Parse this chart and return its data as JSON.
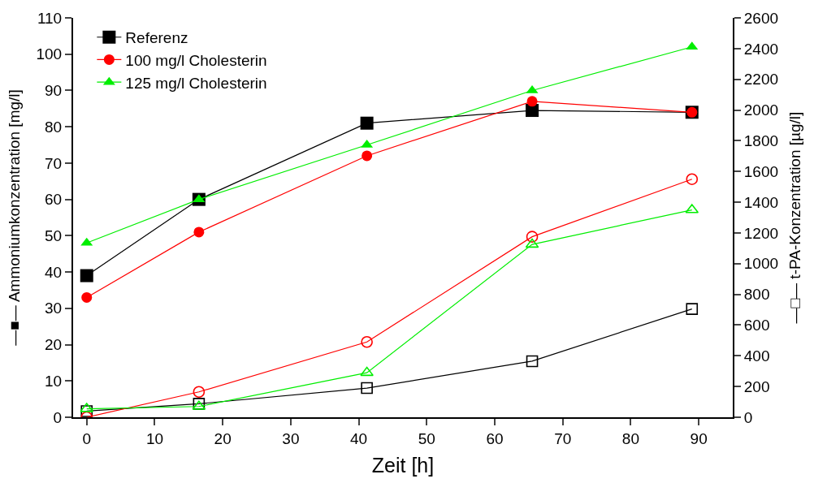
{
  "chart_data": {
    "type": "line",
    "xlabel": "Zeit [h]",
    "ylabel": "—■— Ammoniumkonzentration [mg/l]",
    "y2label": "—□— t-PA-Konzentration [µg/l]",
    "x": [
      0,
      16.5,
      41.2,
      65.5,
      89
    ],
    "xlim": [
      -2,
      95
    ],
    "xticks": [
      0,
      10,
      20,
      30,
      40,
      50,
      60,
      70,
      80,
      90
    ],
    "ylim": [
      0,
      110
    ],
    "yticks": [
      0,
      10,
      20,
      30,
      40,
      50,
      60,
      70,
      80,
      90,
      100,
      110
    ],
    "y2lim": [
      0,
      2600
    ],
    "y2ticks": [
      0,
      200,
      400,
      600,
      800,
      1000,
      1200,
      1400,
      1600,
      1800,
      2000,
      2200,
      2400,
      2600
    ],
    "legend": "top left",
    "line_style": "solid",
    "series": [
      {
        "name": "Referenz",
        "color": "#000000",
        "marker": "square",
        "values": [
          39,
          60,
          81,
          84.5,
          84
        ]
      },
      {
        "name": "100 mg/l Cholesterin",
        "color": "#ff0000",
        "marker": "circle",
        "values": [
          33,
          51,
          72,
          87,
          84
        ]
      },
      {
        "name": "125 mg/l Cholesterin",
        "color": "#00ee00",
        "marker": "triangle",
        "values": [
          48,
          60,
          75,
          90,
          102
        ]
      },
      {
        "color": "#000000",
        "marker": "square-open",
        "axis": "y2",
        "values": [
          40,
          88,
          190,
          365,
          705
        ]
      },
      {
        "color": "#ff0000",
        "marker": "circle-open",
        "axis": "y2",
        "values": [
          0,
          165,
          490,
          1175,
          1550
        ]
      },
      {
        "color": "#00ee00",
        "marker": "triangle-open",
        "axis": "y2",
        "values": [
          55,
          70,
          290,
          1125,
          1350
        ]
      }
    ]
  }
}
